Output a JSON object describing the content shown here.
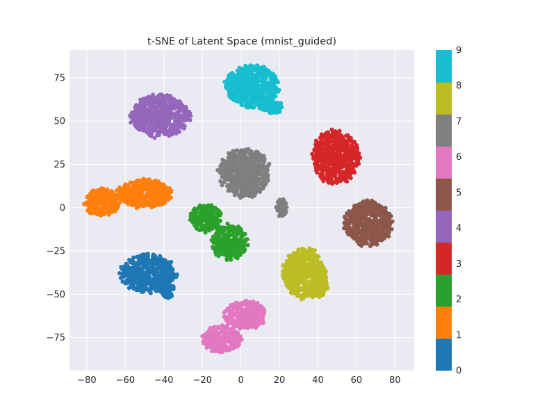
{
  "chart_data": {
    "type": "scatter",
    "title": "t-SNE of Latent Space (mnist_guided)",
    "xlabel": "",
    "ylabel": "",
    "xlim": [
      -89,
      90
    ],
    "ylim": [
      -94,
      91
    ],
    "xticks": [
      -80,
      -60,
      -40,
      -20,
      0,
      20,
      40,
      60,
      80
    ],
    "yticks": [
      -75,
      -50,
      -25,
      0,
      25,
      50,
      75
    ],
    "xtick_labels": [
      "−80",
      "−60",
      "−40",
      "−20",
      "0",
      "20",
      "40",
      "60",
      "80"
    ],
    "ytick_labels": [
      "−75",
      "−50",
      "−25",
      "0",
      "25",
      "50",
      "75"
    ],
    "grid": true,
    "background": "#eaeaf2",
    "grid_color": "#ffffff",
    "colorbar": {
      "min": 0,
      "max": 9,
      "labels": [
        "0",
        "1",
        "2",
        "3",
        "4",
        "5",
        "6",
        "7",
        "8",
        "9"
      ]
    },
    "series": [
      {
        "label": "0",
        "color": "#1f77b4",
        "clusters": [
          {
            "cx": -48,
            "cy": -38,
            "rx": 14,
            "ry": 11
          },
          {
            "cx": -38,
            "cy": -48,
            "rx": 4,
            "ry": 4
          }
        ]
      },
      {
        "label": "1",
        "color": "#ff7f0e",
        "clusters": [
          {
            "cx": -50,
            "cy": 8,
            "rx": 14,
            "ry": 8
          },
          {
            "cx": -72,
            "cy": 3,
            "rx": 9,
            "ry": 8
          }
        ]
      },
      {
        "label": "2",
        "color": "#2ca02c",
        "clusters": [
          {
            "cx": -18,
            "cy": -6,
            "rx": 8,
            "ry": 8
          },
          {
            "cx": -6,
            "cy": -20,
            "rx": 9,
            "ry": 10
          }
        ]
      },
      {
        "label": "3",
        "color": "#d62728",
        "clusters": [
          {
            "cx": 49,
            "cy": 29,
            "rx": 12,
            "ry": 15
          }
        ]
      },
      {
        "label": "4",
        "color": "#9467bd",
        "clusters": [
          {
            "cx": -42,
            "cy": 53,
            "rx": 15,
            "ry": 12
          }
        ]
      },
      {
        "label": "5",
        "color": "#8c564b",
        "clusters": [
          {
            "cx": 66,
            "cy": -9,
            "rx": 12,
            "ry": 13
          }
        ]
      },
      {
        "label": "6",
        "color": "#e377c2",
        "clusters": [
          {
            "cx": 2,
            "cy": -62,
            "rx": 11,
            "ry": 8
          },
          {
            "cx": -10,
            "cy": -76,
            "rx": 10,
            "ry": 8
          }
        ]
      },
      {
        "label": "7",
        "color": "#7f7f7f",
        "clusters": [
          {
            "cx": 2,
            "cy": 20,
            "rx": 13,
            "ry": 14
          },
          {
            "cx": 21,
            "cy": 0,
            "rx": 3,
            "ry": 5
          }
        ]
      },
      {
        "label": "8",
        "color": "#bcbd22",
        "clusters": [
          {
            "cx": 33,
            "cy": -38,
            "rx": 11,
            "ry": 14
          },
          {
            "cx": 40,
            "cy": -46,
            "rx": 5,
            "ry": 6
          }
        ]
      },
      {
        "label": "9",
        "color": "#17becf",
        "clusters": [
          {
            "cx": 6,
            "cy": 70,
            "rx": 14,
            "ry": 12
          },
          {
            "cx": 16,
            "cy": 58,
            "rx": 6,
            "ry": 4
          }
        ]
      }
    ]
  }
}
